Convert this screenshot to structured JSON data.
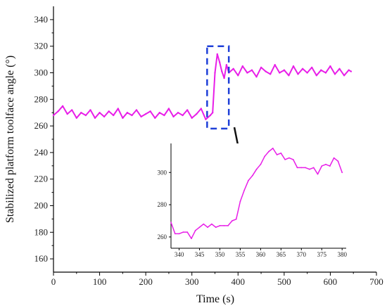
{
  "chart_data": [
    {
      "type": "line",
      "xlabel": "Time (s)",
      "ylabel": "Stabilized platform toolface angle (°)",
      "xlim": [
        0,
        700
      ],
      "ylim": [
        150,
        350
      ],
      "x_ticks": [
        0,
        100,
        200,
        300,
        400,
        500,
        600,
        700
      ],
      "y_ticks": [
        160,
        180,
        200,
        220,
        240,
        260,
        280,
        300,
        320,
        340
      ],
      "x_tick_labels": [
        "0",
        "100",
        "200",
        "300",
        "400",
        "500",
        "600",
        "700"
      ],
      "y_tick_labels": [
        "160",
        "180",
        "200",
        "220",
        "240",
        "260",
        "280",
        "300",
        "320",
        "340"
      ],
      "series": [
        {
          "color": "#e81ee8",
          "x": [
            0,
            10,
            20,
            30,
            40,
            50,
            60,
            70,
            80,
            90,
            100,
            110,
            120,
            130,
            140,
            150,
            160,
            170,
            180,
            190,
            200,
            210,
            220,
            230,
            240,
            250,
            260,
            270,
            280,
            290,
            300,
            310,
            320,
            330,
            340,
            345,
            350,
            355,
            360,
            365,
            370,
            375,
            380,
            390,
            400,
            410,
            420,
            430,
            440,
            450,
            460,
            470,
            480,
            490,
            500,
            510,
            520,
            530,
            540,
            550,
            560,
            570,
            580,
            590,
            600,
            610,
            620,
            630,
            640,
            645
          ],
          "y": [
            268,
            271,
            275,
            269,
            272,
            266,
            270,
            268,
            272,
            266,
            270,
            267,
            271,
            268,
            273,
            266,
            270,
            268,
            272,
            267,
            269,
            271,
            266,
            270,
            268,
            273,
            267,
            270,
            268,
            272,
            266,
            269,
            273,
            265,
            268,
            270,
            300,
            314,
            308,
            301,
            296,
            306,
            300,
            303,
            298,
            305,
            300,
            302,
            297,
            304,
            301,
            299,
            306,
            300,
            302,
            298,
            305,
            299,
            303,
            300,
            304,
            298,
            302,
            300,
            305,
            299,
            303,
            298,
            302,
            301
          ]
        }
      ],
      "annotations": {
        "highlight_box": {
          "x": [
            333,
            380
          ],
          "y": [
            258,
            320
          ],
          "color": "#1e3fd8",
          "style": "dashed"
        },
        "arrow": {
          "from": [
            392,
            259
          ],
          "to": [
            410,
            228
          ],
          "color": "#111111"
        }
      }
    },
    {
      "type": "line",
      "xlim": [
        338,
        381
      ],
      "ylim": [
        253,
        318
      ],
      "x_ticks": [
        340,
        345,
        350,
        355,
        360,
        365,
        370,
        375,
        380
      ],
      "y_ticks": [
        260,
        280,
        300
      ],
      "x_tick_labels": [
        "340",
        "345",
        "350",
        "355",
        "360",
        "365",
        "370",
        "375",
        "380"
      ],
      "y_tick_labels": [
        "260",
        "280",
        "300"
      ],
      "series": [
        {
          "color": "#e81ee8",
          "x": [
            338,
            339,
            340,
            341,
            342,
            343,
            344,
            345,
            346,
            347,
            348,
            349,
            350,
            351,
            352,
            353,
            354,
            355,
            356,
            357,
            358,
            359,
            360,
            361,
            362,
            363,
            364,
            365,
            366,
            367,
            368,
            369,
            370,
            371,
            372,
            373,
            374,
            375,
            376,
            377,
            378,
            379,
            380
          ],
          "y": [
            269,
            262,
            262,
            263,
            263,
            259,
            264,
            266,
            268,
            266,
            268,
            266,
            267,
            267,
            267,
            270,
            271,
            282,
            289,
            295,
            298,
            302,
            305,
            310,
            313,
            315,
            311,
            312,
            308,
            309,
            308,
            303,
            303,
            303,
            302,
            303,
            299,
            304,
            305,
            304,
            309,
            307,
            300
          ]
        }
      ]
    }
  ]
}
